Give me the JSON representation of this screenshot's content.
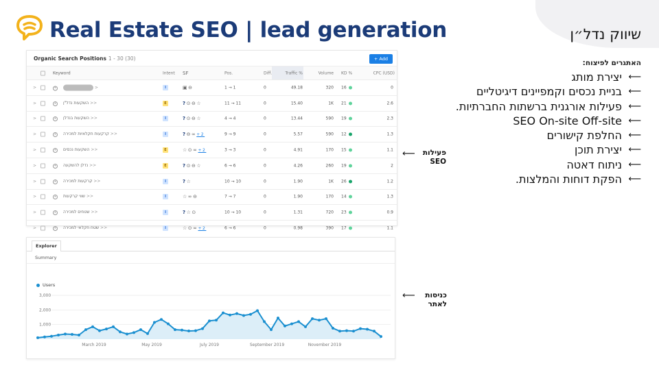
{
  "header": {
    "title": "Real Estate SEO | lead generation",
    "brand": "שיווק נדל״ן"
  },
  "challenges": {
    "title": "האתגרים לפיצוח:",
    "items": [
      "יצירת מותג",
      "בניית נכסים וקמפיינים דיגיטליים",
      "פעילות אורגנית ברשתות החברתיות.",
      "SEO On-site Off-site",
      "החלפת קישורים",
      "יצירת תוכן",
      "ניתוח דאטה",
      "הפקת דוחות והמלצות."
    ]
  },
  "annotations": {
    "seo_line1": "פעילות",
    "seo_line2": "SEO",
    "visits_line1": "כניסות",
    "visits_line2": "לאתר"
  },
  "seo_panel": {
    "title": "Organic Search Positions",
    "range": "1 - 30 (30)",
    "add_label": "+ Add",
    "columns": {
      "keyword": "Keyword",
      "intent": "Intent",
      "sf": "SF",
      "pos": "Pos.",
      "diff": "Diff.",
      "traffic": "Traffic %",
      "volume": "Volume",
      "kd": "KD %",
      "cpc": "CPC (USD)"
    },
    "rows": [
      {
        "keyword": "",
        "intent": "I",
        "sf": "1",
        "pos": "1 → 1",
        "diff": "0",
        "traffic": "49.18",
        "volume": "320",
        "kd": "16",
        "cpc": "0"
      },
      {
        "keyword": "השקעות נדל\"ן",
        "intent": "E",
        "sf": "2",
        "pos": "11 → 11",
        "diff": "0",
        "traffic": "15.40",
        "volume": "1K",
        "kd": "21",
        "cpc": "2.6"
      },
      {
        "keyword": "השקעות בנדלן",
        "intent": "I",
        "sf": "2",
        "pos": "4 → 4",
        "diff": "0",
        "traffic": "13.44",
        "volume": "590",
        "kd": "19",
        "cpc": "2.3"
      },
      {
        "keyword": "קרקעות חקלאיות למכירה",
        "intent": "I",
        "sf": "3",
        "pos": "9 → 9",
        "diff": "0",
        "traffic": "5.57",
        "volume": "590",
        "kd": "12",
        "cpc": "1.3"
      },
      {
        "keyword": "השקעות נכסים",
        "intent": "E",
        "sf": "4",
        "pos": "3 → 3",
        "diff": "0",
        "traffic": "4.91",
        "volume": "170",
        "kd": "15",
        "cpc": "1.1"
      },
      {
        "keyword": "נדלן להשקעה",
        "intent": "E",
        "sf": "2",
        "pos": "6 → 6",
        "diff": "0",
        "traffic": "4.26",
        "volume": "260",
        "kd": "19",
        "cpc": "2"
      },
      {
        "keyword": "קרקעות למכירה",
        "intent": "I",
        "sf": "5",
        "pos": "10 → 10",
        "diff": "0",
        "traffic": "1.90",
        "volume": "1K",
        "kd": "26",
        "cpc": "1.2"
      },
      {
        "keyword": "שווי קרקעות",
        "intent": "I",
        "sf": "6",
        "pos": "7 → 7",
        "diff": "0",
        "traffic": "1.90",
        "volume": "170",
        "kd": "14",
        "cpc": "1.3"
      },
      {
        "keyword": "שטחים למכירה",
        "intent": "I",
        "sf": "7",
        "pos": "10 → 10",
        "diff": "0",
        "traffic": "1.31",
        "volume": "720",
        "kd": "23",
        "cpc": "0.9"
      },
      {
        "keyword": "שטח חקלאי למכירה",
        "intent": "I",
        "sf": "4",
        "pos": "6 → 6",
        "diff": "0",
        "traffic": "0.98",
        "volume": "390",
        "kd": "17",
        "cpc": "1.1"
      }
    ]
  },
  "explorer_panel": {
    "tab": "Explorer",
    "summary": "Summary",
    "legend": "Users",
    "colors": {
      "line": "#1a8fd0",
      "fill": "#dceef8"
    }
  },
  "chart_data": {
    "type": "area",
    "title": "",
    "xlabel": "",
    "ylabel": "",
    "ylim": [
      0,
      3000
    ],
    "yticks": [
      "3,000",
      "2,000",
      "1,000"
    ],
    "xticks": [
      "March 2019",
      "May 2019",
      "July 2019",
      "September 2019",
      "November 2019"
    ],
    "grid": true,
    "legend_position": "top-left",
    "series": [
      {
        "name": "Users",
        "values": [
          100,
          150,
          200,
          280,
          350,
          330,
          280,
          650,
          850,
          580,
          700,
          850,
          500,
          350,
          450,
          650,
          380,
          1150,
          1350,
          1050,
          650,
          620,
          560,
          580,
          720,
          1250,
          1300,
          1800,
          1650,
          1750,
          1620,
          1700,
          1950,
          1200,
          650,
          1450,
          900,
          1050,
          1200,
          850,
          1400,
          1300,
          1400,
          750,
          550,
          580,
          550,
          720,
          680,
          550,
          180
        ]
      }
    ]
  }
}
